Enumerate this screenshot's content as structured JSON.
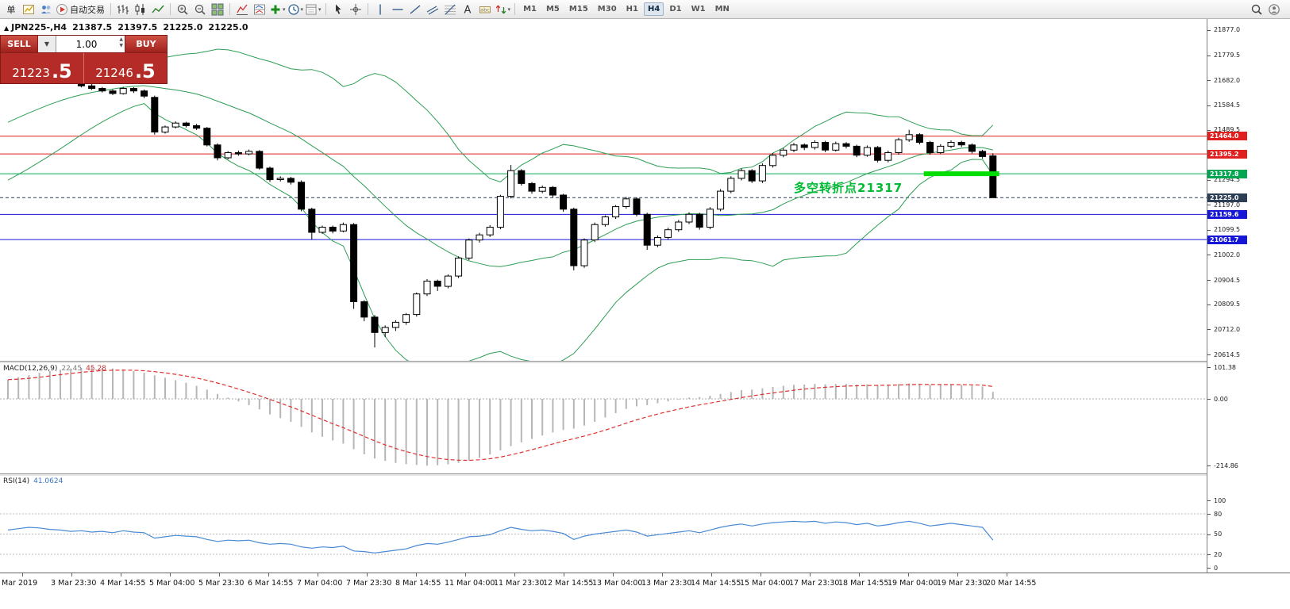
{
  "toolbar": {
    "groups": [
      [
        {
          "icon": "new-order",
          "label": "单"
        },
        {
          "icon": "new-chart"
        },
        {
          "icon": "profiles"
        },
        {
          "icon": "autotrading",
          "label": "自动交易"
        }
      ],
      [
        {
          "icon": "bar-chart"
        },
        {
          "icon": "candlestick-chart"
        },
        {
          "icon": "line-chart"
        }
      ],
      [
        {
          "icon": "zoom-in"
        },
        {
          "icon": "zoom-out"
        },
        {
          "icon": "tile-windows"
        }
      ],
      [
        {
          "icon": "indicator-list"
        },
        {
          "icon": "indicator-window"
        },
        {
          "icon": "add-indicator",
          "dropdown": true
        },
        {
          "icon": "periods",
          "dropdown": true
        },
        {
          "icon": "templates",
          "dropdown": true
        }
      ],
      [
        {
          "icon": "cursor"
        },
        {
          "icon": "crosshair"
        }
      ],
      [
        {
          "icon": "vertical-line"
        },
        {
          "icon": "horizontal-line"
        },
        {
          "icon": "trendline"
        },
        {
          "icon": "equidistant-channel"
        },
        {
          "icon": "fibonacci"
        },
        {
          "icon": "text"
        },
        {
          "icon": "text-label"
        },
        {
          "icon": "arrows",
          "dropdown": true
        }
      ]
    ],
    "timeframes": [
      "M1",
      "M5",
      "M15",
      "M30",
      "H1",
      "H4",
      "D1",
      "W1",
      "MN"
    ],
    "active_timeframe": "H4",
    "right_icons": [
      {
        "icon": "search"
      },
      {
        "icon": "account"
      }
    ]
  },
  "chart": {
    "header": {
      "symbol_tf": "JPN225-,H4",
      "open": "21387.5",
      "high": "21397.5",
      "low": "21225.0",
      "close": "21225.0"
    },
    "trade_panel": {
      "sell_label": "SELL",
      "buy_label": "BUY",
      "volume": "1.00",
      "sell_price_main": "21223",
      "sell_price_pips": ".5",
      "buy_price_main": "21246",
      "buy_price_pips": ".5",
      "panel_red": "#b52b27",
      "button_red": "#c24040"
    }
  },
  "chart_data": {
    "type": "candlestick",
    "symbol": "JPN225-",
    "timeframe": "H4",
    "y_range": [
      20590,
      21920
    ],
    "y_axis_ticks": [
      "21877.0",
      "21779.5",
      "21682.0",
      "21584.5",
      "21489.5",
      "21294.5",
      "21197.0",
      "21099.5",
      "21002.0",
      "20904.5",
      "20809.5",
      "20712.0",
      "20614.5"
    ],
    "x_axis_labels": [
      "Mar 2019",
      "3 Mar 23:30",
      "4 Mar 14:55",
      "5 Mar 04:00",
      "5 Mar 23:30",
      "6 Mar 14:55",
      "7 Mar 04:00",
      "7 Mar 23:30",
      "8 Mar 14:55",
      "11 Mar 04:00",
      "11 Mar 23:30",
      "12 Mar 14:55",
      "13 Mar 04:00",
      "13 Mar 23:30",
      "14 Mar 14:55",
      "15 Mar 04:00",
      "17 Mar 23:30",
      "18 Mar 14:55",
      "19 Mar 04:00",
      "19 Mar 23:30",
      "20 Mar 14:55"
    ],
    "colors": {
      "candle_up": "#ffffff",
      "candle_down": "#000000",
      "candle_outline": "#000000",
      "bollinger": "#2e9e54"
    },
    "levels": [
      {
        "value": 21464.0,
        "label": "21464.0",
        "color": "#e01f1f",
        "style": "solid"
      },
      {
        "value": 21395.2,
        "label": "21395.2",
        "color": "#e01f1f",
        "style": "solid"
      },
      {
        "value": 21317.8,
        "label": "21317.8",
        "color": "#00a651",
        "style": "solid"
      },
      {
        "value": 21225.0,
        "label": "21225.0",
        "color": "#2c3e55",
        "style": "dashed",
        "role": "current-price"
      },
      {
        "value": 21159.6,
        "label": "21159.6",
        "color": "#1616d6",
        "style": "solid"
      },
      {
        "value": 21061.7,
        "label": "21061.7",
        "color": "#1616d6",
        "style": "solid"
      }
    ],
    "annotations": {
      "pivot_text": "多空转折点21317",
      "pivot_color": "#00bb33",
      "segment": {
        "value": 21317.8,
        "from_index": 87.4,
        "to_index": 94.6,
        "color": "#00dd00",
        "width": 6
      }
    },
    "bollinger": {
      "period": 20,
      "deviation": 2,
      "warmup_closes": [
        21310,
        21330,
        21350,
        21370,
        21390,
        21410,
        21430,
        21450,
        21470,
        21490,
        21510,
        21530,
        21550,
        21570,
        21590,
        21610,
        21630,
        21650,
        21665,
        21680
      ]
    },
    "candles": [
      [
        21685,
        21698,
        21678,
        21690
      ],
      [
        21690,
        21708,
        21685,
        21700
      ],
      [
        21700,
        21718,
        21695,
        21710
      ],
      [
        21710,
        21715,
        21698,
        21705
      ],
      [
        21705,
        21722,
        21700,
        21715
      ],
      [
        21715,
        21720,
        21694,
        21700
      ],
      [
        21700,
        21706,
        21674,
        21680
      ],
      [
        21680,
        21686,
        21654,
        21660
      ],
      [
        21660,
        21668,
        21644,
        21650
      ],
      [
        21650,
        21656,
        21634,
        21640
      ],
      [
        21640,
        21646,
        21624,
        21630
      ],
      [
        21630,
        21656,
        21626,
        21650
      ],
      [
        21650,
        21655,
        21632,
        21640
      ],
      [
        21640,
        21646,
        21612,
        21620
      ],
      [
        21615,
        21622,
        21470,
        21480
      ],
      [
        21480,
        21506,
        21474,
        21500
      ],
      [
        21500,
        21522,
        21494,
        21515
      ],
      [
        21515,
        21520,
        21498,
        21505
      ],
      [
        21505,
        21512,
        21488,
        21495
      ],
      [
        21495,
        21500,
        21424,
        21430
      ],
      [
        21430,
        21436,
        21370,
        21380
      ],
      [
        21380,
        21406,
        21374,
        21400
      ],
      [
        21400,
        21408,
        21388,
        21395
      ],
      [
        21395,
        21412,
        21390,
        21405
      ],
      [
        21405,
        21410,
        21334,
        21340
      ],
      [
        21340,
        21346,
        21286,
        21295
      ],
      [
        21295,
        21308,
        21288,
        21300
      ],
      [
        21300,
        21306,
        21276,
        21285
      ],
      [
        21285,
        21292,
        21172,
        21180
      ],
      [
        21180,
        21186,
        21062,
        21090
      ],
      [
        21090,
        21116,
        21084,
        21110
      ],
      [
        21110,
        21116,
        21086,
        21095
      ],
      [
        21095,
        21128,
        21090,
        21120
      ],
      [
        21120,
        21126,
        20792,
        20820
      ],
      [
        20820,
        20826,
        20744,
        20760
      ],
      [
        20760,
        20768,
        20642,
        20700
      ],
      [
        20700,
        20728,
        20682,
        20720
      ],
      [
        20720,
        20748,
        20706,
        20740
      ],
      [
        20740,
        20776,
        20730,
        20770
      ],
      [
        20770,
        20856,
        20762,
        20850
      ],
      [
        20850,
        20908,
        20842,
        20900
      ],
      [
        20900,
        20906,
        20862,
        20880
      ],
      [
        20880,
        20926,
        20872,
        20920
      ],
      [
        20920,
        20996,
        20912,
        20990
      ],
      [
        20990,
        21066,
        20982,
        21060
      ],
      [
        21060,
        21088,
        21050,
        21080
      ],
      [
        21080,
        21118,
        21072,
        21110
      ],
      [
        21110,
        21236,
        21102,
        21230
      ],
      [
        21230,
        21352,
        21222,
        21330
      ],
      [
        21330,
        21336,
        21272,
        21280
      ],
      [
        21280,
        21286,
        21240,
        21250
      ],
      [
        21250,
        21272,
        21242,
        21265
      ],
      [
        21265,
        21270,
        21226,
        21235
      ],
      [
        21235,
        21240,
        21170,
        21180
      ],
      [
        21180,
        21186,
        20942,
        20960
      ],
      [
        20960,
        21066,
        20952,
        21060
      ],
      [
        21060,
        21128,
        21052,
        21120
      ],
      [
        21120,
        21156,
        21112,
        21150
      ],
      [
        21150,
        21196,
        21142,
        21190
      ],
      [
        21190,
        21228,
        21182,
        21220
      ],
      [
        21220,
        21226,
        21152,
        21160
      ],
      [
        21160,
        21166,
        21022,
        21040
      ],
      [
        21040,
        21078,
        21032,
        21070
      ],
      [
        21070,
        21108,
        21062,
        21100
      ],
      [
        21100,
        21138,
        21092,
        21130
      ],
      [
        21130,
        21168,
        21122,
        21160
      ],
      [
        21160,
        21166,
        21100,
        21110
      ],
      [
        21110,
        21188,
        21102,
        21180
      ],
      [
        21180,
        21258,
        21172,
        21250
      ],
      [
        21250,
        21308,
        21242,
        21300
      ],
      [
        21300,
        21338,
        21292,
        21330
      ],
      [
        21330,
        21336,
        21282,
        21290
      ],
      [
        21290,
        21358,
        21282,
        21350
      ],
      [
        21350,
        21398,
        21342,
        21390
      ],
      [
        21390,
        21418,
        21382,
        21410
      ],
      [
        21410,
        21438,
        21402,
        21430
      ],
      [
        21430,
        21436,
        21410,
        21420
      ],
      [
        21420,
        21448,
        21412,
        21440
      ],
      [
        21440,
        21446,
        21402,
        21410
      ],
      [
        21410,
        21443,
        21404,
        21435
      ],
      [
        21435,
        21441,
        21416,
        21425
      ],
      [
        21425,
        21431,
        21382,
        21390
      ],
      [
        21390,
        21428,
        21384,
        21420
      ],
      [
        21420,
        21426,
        21362,
        21370
      ],
      [
        21370,
        21408,
        21362,
        21400
      ],
      [
        21400,
        21458,
        21392,
        21450
      ],
      [
        21450,
        21489,
        21442,
        21470
      ],
      [
        21470,
        21476,
        21432,
        21440
      ],
      [
        21440,
        21446,
        21392,
        21400
      ],
      [
        21400,
        21433,
        21394,
        21425
      ],
      [
        21425,
        21448,
        21418,
        21440
      ],
      [
        21440,
        21446,
        21422,
        21430
      ],
      [
        21430,
        21436,
        21397,
        21405
      ],
      [
        21405,
        21411,
        21377,
        21385
      ],
      [
        21387.5,
        21397.5,
        21225,
        21225
      ]
    ],
    "indicators": [
      {
        "type": "MACD",
        "name": "MACD(12,26,9)",
        "value1": "22.45",
        "value2": "45.28",
        "signal_period": 9,
        "scale_labels": [
          "101.38",
          "0.00",
          "-214.86"
        ],
        "histogram_color": "#b6b6b6",
        "signal_color": "#e03030",
        "histogram": [
          62,
          70,
          77,
          84,
          90,
          94,
          98,
          100,
          101,
          100,
          98,
          95,
          90,
          84,
          76,
          68,
          60,
          52,
          42,
          30,
          16,
          4,
          -8,
          -20,
          -34,
          -50,
          -62,
          -74,
          -90,
          -108,
          -122,
          -134,
          -144,
          -162,
          -178,
          -192,
          -200,
          -206,
          -210,
          -213,
          -215,
          -214,
          -211,
          -206,
          -199,
          -190,
          -179,
          -166,
          -152,
          -140,
          -129,
          -118,
          -108,
          -100,
          -96,
          -86,
          -74,
          -60,
          -46,
          -32,
          -24,
          -20,
          -14,
          -8,
          -2,
          4,
          6,
          10,
          16,
          22,
          28,
          30,
          34,
          38,
          42,
          45,
          46,
          48,
          47,
          48,
          48,
          46,
          47,
          45,
          46,
          48,
          50,
          49,
          46,
          45,
          46,
          45,
          43,
          40,
          22.45
        ]
      },
      {
        "type": "RSI",
        "name": "RSI(14)",
        "current": "41.0624",
        "scale_labels": [
          "100",
          "80",
          "50",
          "20",
          "0"
        ],
        "levels": [
          80,
          50,
          20
        ],
        "color": "#4a8ad4",
        "values": [
          56,
          58,
          60,
          59,
          57,
          56,
          54,
          55,
          53,
          54,
          52,
          55,
          53,
          52,
          44,
          46,
          48,
          47,
          46,
          42,
          39,
          41,
          40,
          41,
          37,
          35,
          36,
          35,
          31,
          29,
          31,
          30,
          32,
          25,
          24,
          22,
          24,
          26,
          28,
          33,
          36,
          35,
          38,
          42,
          46,
          47,
          49,
          55,
          60,
          57,
          55,
          56,
          54,
          51,
          42,
          47,
          50,
          52,
          54,
          56,
          53,
          47,
          49,
          51,
          53,
          55,
          52,
          56,
          60,
          63,
          65,
          62,
          65,
          67,
          68,
          69,
          68,
          69,
          66,
          68,
          67,
          64,
          66,
          62,
          64,
          67,
          69,
          66,
          62,
          64,
          66,
          64,
          62,
          60,
          41.06
        ]
      }
    ]
  }
}
